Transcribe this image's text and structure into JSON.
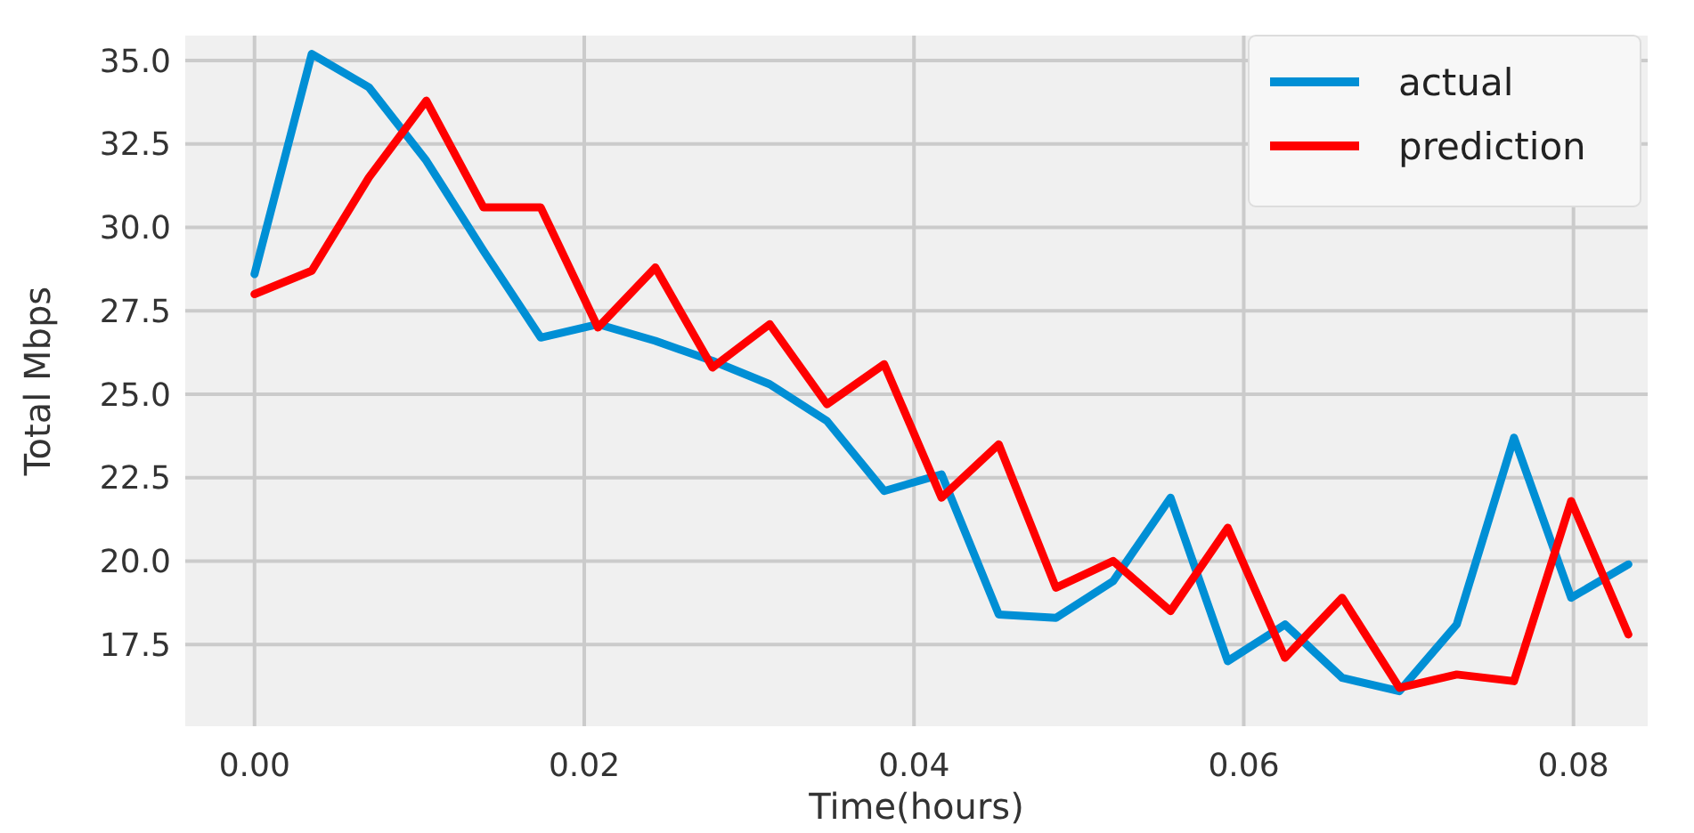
{
  "chart_data": {
    "type": "line",
    "xlabel": "Time(hours)",
    "ylabel": "Total Mbps",
    "x": [
      0,
      0.00347,
      0.00694,
      0.01042,
      0.01389,
      0.01736,
      0.02083,
      0.02431,
      0.02778,
      0.03125,
      0.03472,
      0.03819,
      0.04167,
      0.04514,
      0.04861,
      0.05208,
      0.05556,
      0.05903,
      0.0625,
      0.06597,
      0.06944,
      0.07292,
      0.07639,
      0.07986,
      0.08333
    ],
    "series": [
      {
        "name": "actual",
        "color": "#008fd5",
        "values": [
          28.6,
          35.2,
          34.2,
          32.0,
          29.3,
          26.7,
          27.1,
          26.6,
          26.0,
          25.3,
          24.2,
          22.1,
          22.6,
          18.4,
          18.3,
          19.4,
          21.9,
          17.0,
          18.1,
          16.5,
          16.1,
          18.1,
          23.7,
          18.9,
          19.9
        ]
      },
      {
        "name": "prediction",
        "color": "#ff0000",
        "values": [
          28.0,
          28.7,
          31.5,
          33.8,
          30.6,
          30.6,
          27.0,
          28.8,
          25.8,
          27.1,
          24.7,
          25.9,
          21.9,
          23.5,
          19.2,
          20.0,
          18.5,
          21.0,
          17.1,
          18.9,
          16.2,
          16.6,
          16.4,
          21.8,
          17.8
        ]
      }
    ],
    "xlim": [
      -0.0042,
      0.0845
    ],
    "ylim": [
      15.05,
      35.75
    ],
    "xticks": [
      {
        "value": 0,
        "label": "0.00"
      },
      {
        "value": 0.02,
        "label": "0.02"
      },
      {
        "value": 0.04,
        "label": "0.04"
      },
      {
        "value": 0.06,
        "label": "0.06"
      },
      {
        "value": 0.08,
        "label": "0.08"
      }
    ],
    "yticks": [
      {
        "value": 17.5,
        "label": "17.5"
      },
      {
        "value": 20,
        "label": "20.0"
      },
      {
        "value": 22.5,
        "label": "22.5"
      },
      {
        "value": 25,
        "label": "25.0"
      },
      {
        "value": 27.5,
        "label": "27.5"
      },
      {
        "value": 30,
        "label": "30.0"
      },
      {
        "value": 32.5,
        "label": "32.5"
      },
      {
        "value": 35,
        "label": "35.0"
      }
    ],
    "grid": true,
    "legend": "top right",
    "marker": "none",
    "line_style": "solid"
  }
}
